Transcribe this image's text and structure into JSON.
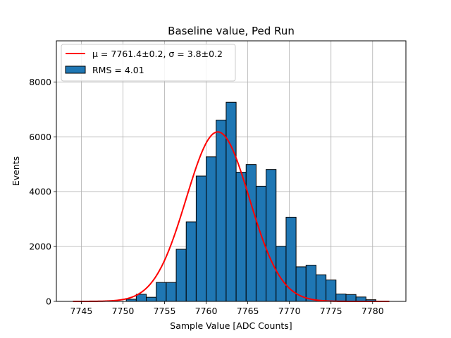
{
  "chart_data": {
    "type": "bar",
    "title": "Baseline value, Ped Run",
    "xlabel": "Sample Value [ADC Counts]",
    "ylabel": "Events",
    "xlim": [
      7742.0,
      7784.0
    ],
    "ylim": [
      0,
      9500
    ],
    "xticks": [
      7745,
      7750,
      7755,
      7760,
      7765,
      7770,
      7775,
      7780
    ],
    "yticks": [
      0,
      2000,
      4000,
      6000,
      8000
    ],
    "grid": true,
    "legend_position": "top-left",
    "bar_color": "#1f77b4",
    "bar_edge_color": "#000000",
    "fit_color": "#ff0000",
    "histogram": {
      "name": "RMS = 4.01",
      "bins": [
        {
          "x0": 7750.4,
          "x1": 7751.6,
          "count": 80
        },
        {
          "x0": 7751.6,
          "x1": 7752.8,
          "count": 260
        },
        {
          "x0": 7752.8,
          "x1": 7754.0,
          "count": 150
        },
        {
          "x0": 7754.0,
          "x1": 7755.2,
          "count": 690
        },
        {
          "x0": 7755.2,
          "x1": 7756.4,
          "count": 690
        },
        {
          "x0": 7756.4,
          "x1": 7757.6,
          "count": 1900
        },
        {
          "x0": 7757.6,
          "x1": 7758.8,
          "count": 2900
        },
        {
          "x0": 7758.8,
          "x1": 7760.0,
          "count": 4570
        },
        {
          "x0": 7760.0,
          "x1": 7761.2,
          "count": 5270
        },
        {
          "x0": 7761.2,
          "x1": 7762.4,
          "count": 6610
        },
        {
          "x0": 7762.4,
          "x1": 7763.6,
          "count": 7260
        },
        {
          "x0": 7763.6,
          "x1": 7764.8,
          "count": 4710
        },
        {
          "x0": 7764.8,
          "x1": 7766.0,
          "count": 4990
        },
        {
          "x0": 7766.0,
          "x1": 7767.2,
          "count": 4200
        },
        {
          "x0": 7767.2,
          "x1": 7768.4,
          "count": 4810
        },
        {
          "x0": 7768.4,
          "x1": 7769.6,
          "count": 2010
        },
        {
          "x0": 7769.6,
          "x1": 7770.8,
          "count": 3070
        },
        {
          "x0": 7770.8,
          "x1": 7772.0,
          "count": 1260
        },
        {
          "x0": 7772.0,
          "x1": 7773.2,
          "count": 1320
        },
        {
          "x0": 7773.2,
          "x1": 7774.4,
          "count": 970
        },
        {
          "x0": 7774.4,
          "x1": 7775.6,
          "count": 780
        },
        {
          "x0": 7775.6,
          "x1": 7776.8,
          "count": 270
        },
        {
          "x0": 7776.8,
          "x1": 7778.0,
          "count": 250
        },
        {
          "x0": 7778.0,
          "x1": 7779.2,
          "count": 160
        },
        {
          "x0": 7779.2,
          "x1": 7780.4,
          "count": 60
        }
      ]
    },
    "fit": {
      "name": "μ = 7761.4±0.2, σ = 3.8±0.2",
      "type": "gaussian",
      "mu": 7761.4,
      "sigma": 3.8,
      "amplitude": 6180,
      "x_range": [
        7744,
        7782
      ]
    }
  }
}
